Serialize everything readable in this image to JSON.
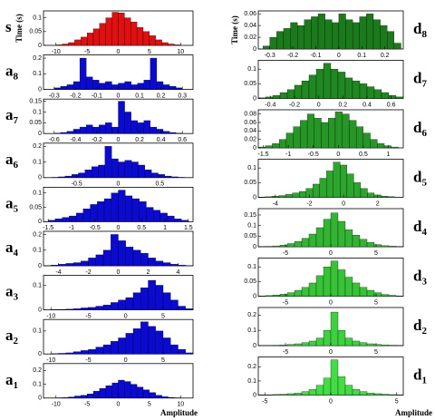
{
  "chart_data": [
    {
      "type": "histogram",
      "label": "s",
      "ylabel": "Time (s)",
      "color": "#e01010",
      "xlim": [
        -12,
        12
      ],
      "xticks": [
        -10,
        -5,
        0,
        5,
        10
      ],
      "ylim": [
        0,
        0.125
      ],
      "yticks": [
        0,
        0.05,
        0.1
      ],
      "bins": [
        -10,
        -9,
        -8,
        -7,
        -6,
        -5,
        -4,
        -3,
        -2,
        -1,
        0,
        1,
        2,
        3,
        4,
        5,
        6,
        7,
        8,
        9,
        10
      ],
      "values": [
        0.002,
        0.005,
        0.01,
        0.02,
        0.03,
        0.045,
        0.06,
        0.08,
        0.1,
        0.12,
        0.118,
        0.1,
        0.085,
        0.065,
        0.05,
        0.035,
        0.02,
        0.01,
        0.005,
        0.002
      ]
    },
    {
      "type": "histogram",
      "label": "a",
      "subscript": "8",
      "color": "#0a0ad0",
      "xlim": [
        -0.35,
        0.35
      ],
      "xticks": [
        -0.3,
        -0.2,
        -0.1,
        0,
        0.1,
        0.2,
        0.3
      ],
      "ylim": [
        0,
        0.22
      ],
      "yticks": [
        0,
        0.1,
        0.2
      ],
      "bins": [
        -0.3,
        -0.27,
        -0.24,
        -0.21,
        -0.18,
        -0.15,
        -0.12,
        -0.09,
        -0.06,
        -0.03,
        0,
        0.03,
        0.06,
        0.09,
        0.12,
        0.15,
        0.18,
        0.21,
        0.24,
        0.27,
        0.3
      ],
      "values": [
        0.01,
        0.02,
        0.03,
        0.05,
        0.2,
        0.08,
        0.06,
        0.04,
        0.05,
        0.03,
        0.04,
        0.05,
        0.03,
        0.04,
        0.06,
        0.2,
        0.05,
        0.03,
        0.02,
        0.01
      ]
    },
    {
      "type": "histogram",
      "label": "a",
      "subscript": "7",
      "color": "#0a0ad0",
      "xlim": [
        -0.7,
        0.7
      ],
      "xticks": [
        -0.6,
        -0.4,
        -0.2,
        0,
        0.2,
        0.4,
        0.6
      ],
      "ylim": [
        0,
        0.16
      ],
      "yticks": [
        0,
        0.05,
        0.1,
        0.15
      ],
      "bins": [
        -0.6,
        -0.54,
        -0.48,
        -0.42,
        -0.36,
        -0.3,
        -0.24,
        -0.18,
        -0.12,
        -0.06,
        0,
        0.06,
        0.12,
        0.18,
        0.24,
        0.3,
        0.36,
        0.42,
        0.48,
        0.54,
        0.6
      ],
      "values": [
        0.002,
        0.005,
        0.01,
        0.02,
        0.03,
        0.04,
        0.03,
        0.04,
        0.05,
        0.03,
        0.15,
        0.1,
        0.06,
        0.05,
        0.06,
        0.03,
        0.02,
        0.01,
        0.005,
        0.002
      ]
    },
    {
      "type": "histogram",
      "label": "a",
      "subscript": "6",
      "color": "#0a0ad0",
      "xlim": [
        -0.9,
        0.9
      ],
      "xticks": [
        -0.5,
        0,
        0.5
      ],
      "ylim": [
        0,
        0.22
      ],
      "yticks": [
        0,
        0.1,
        0.2
      ],
      "bins": [
        -0.8,
        -0.72,
        -0.64,
        -0.56,
        -0.48,
        -0.4,
        -0.32,
        -0.24,
        -0.16,
        -0.08,
        0,
        0.08,
        0.16,
        0.24,
        0.32,
        0.4,
        0.48,
        0.56,
        0.64,
        0.72,
        0.8
      ],
      "values": [
        0.002,
        0.005,
        0.01,
        0.02,
        0.03,
        0.05,
        0.07,
        0.08,
        0.2,
        0.12,
        0.1,
        0.11,
        0.1,
        0.08,
        0.05,
        0.03,
        0.02,
        0.01,
        0.005,
        0.002
      ]
    },
    {
      "type": "histogram",
      "label": "a",
      "subscript": "5",
      "color": "#0a0ad0",
      "xlim": [
        -1.6,
        1.6
      ],
      "xticks": [
        -1.5,
        -1,
        -0.5,
        0,
        0.5,
        1,
        1.5
      ],
      "ylim": [
        0,
        0.12
      ],
      "yticks": [
        0,
        0.05,
        0.1
      ],
      "bins": [
        -1.5,
        -1.35,
        -1.2,
        -1.05,
        -0.9,
        -0.75,
        -0.6,
        -0.45,
        -0.3,
        -0.15,
        0,
        0.15,
        0.3,
        0.45,
        0.6,
        0.75,
        0.9,
        1.05,
        1.2,
        1.35,
        1.5
      ],
      "values": [
        0.005,
        0.01,
        0.015,
        0.02,
        0.03,
        0.045,
        0.06,
        0.07,
        0.08,
        0.1,
        0.11,
        0.09,
        0.08,
        0.07,
        0.05,
        0.04,
        0.03,
        0.02,
        0.01,
        0.005
      ]
    },
    {
      "type": "histogram",
      "label": "a",
      "subscript": "4",
      "color": "#0a0ad0",
      "xlim": [
        -5,
        5
      ],
      "xticks": [
        -4,
        -2,
        0,
        2,
        4
      ],
      "ylim": [
        0,
        0.22
      ],
      "yticks": [
        0,
        0.1,
        0.2
      ],
      "bins": [
        -5,
        -4.5,
        -4,
        -3.5,
        -3,
        -2.5,
        -2,
        -1.5,
        -1,
        -0.5,
        0,
        0.5,
        1,
        1.5,
        2,
        2.5,
        3,
        3.5,
        4,
        4.5,
        5
      ],
      "values": [
        0.002,
        0.005,
        0.01,
        0.015,
        0.02,
        0.03,
        0.05,
        0.07,
        0.1,
        0.2,
        0.16,
        0.12,
        0.1,
        0.08,
        0.05,
        0.03,
        0.02,
        0.01,
        0.005,
        0.002
      ]
    },
    {
      "type": "histogram",
      "label": "a",
      "subscript": "3",
      "color": "#0a0ad0",
      "xlim": [
        -11,
        9
      ],
      "xticks": [
        -10,
        -5,
        0,
        5
      ],
      "ylim": [
        0,
        0.14
      ],
      "yticks": [
        0,
        0.1
      ],
      "bins": [
        -10,
        -9,
        -8,
        -7,
        -6,
        -5,
        -4,
        -3,
        -2,
        -1,
        0,
        1,
        2,
        3,
        4,
        5,
        6,
        7,
        8,
        9
      ],
      "values": [
        0.001,
        0.002,
        0.003,
        0.005,
        0.008,
        0.01,
        0.015,
        0.02,
        0.03,
        0.04,
        0.05,
        0.07,
        0.09,
        0.12,
        0.1,
        0.07,
        0.04,
        0.015,
        0.005
      ]
    },
    {
      "type": "histogram",
      "label": "a",
      "subscript": "2",
      "color": "#0a0ad0",
      "xlim": [
        -11,
        9
      ],
      "xticks": [
        -10,
        -5,
        0,
        5
      ],
      "ylim": [
        0,
        0.15
      ],
      "yticks": [
        0,
        0.1
      ],
      "bins": [
        -10,
        -9,
        -8,
        -7,
        -6,
        -5,
        -4,
        -3,
        -2,
        -1,
        0,
        1,
        2,
        3,
        4,
        5,
        6,
        7,
        8,
        9
      ],
      "values": [
        0.002,
        0.003,
        0.005,
        0.01,
        0.015,
        0.02,
        0.03,
        0.04,
        0.055,
        0.07,
        0.09,
        0.11,
        0.14,
        0.12,
        0.1,
        0.07,
        0.04,
        0.02,
        0.005
      ]
    },
    {
      "type": "histogram",
      "label": "a",
      "subscript": "1",
      "xlabel": "Amplitude",
      "color": "#0a0ad0",
      "xlim": [
        -12,
        12
      ],
      "xticks": [
        -10,
        -5,
        0,
        5,
        10
      ],
      "ylim": [
        0,
        0.25
      ],
      "yticks": [
        0,
        0.1,
        0.2
      ],
      "bins": [
        -10,
        -9,
        -8,
        -7,
        -6,
        -5,
        -4,
        -3,
        -2,
        -1,
        0,
        1,
        2,
        3,
        4,
        5,
        6,
        7,
        8,
        9,
        10
      ],
      "values": [
        0.002,
        0.004,
        0.008,
        0.015,
        0.02,
        0.03,
        0.05,
        0.07,
        0.09,
        0.11,
        0.13,
        0.12,
        0.1,
        0.08,
        0.06,
        0.04,
        0.02,
        0.01,
        0.005,
        0.002
      ]
    },
    {
      "type": "histogram",
      "label": "d",
      "subscript": "8",
      "ylabel": "Time (s)",
      "color": "#1b7a1b",
      "xlim": [
        -0.35,
        0.28
      ],
      "xticks": [
        -0.3,
        -0.2,
        -0.1,
        0,
        0.1,
        0.2
      ],
      "ylim": [
        0,
        0.065
      ],
      "yticks": [
        0,
        0.02,
        0.04,
        0.06
      ],
      "bins": [
        -0.33,
        -0.3,
        -0.27,
        -0.24,
        -0.21,
        -0.18,
        -0.15,
        -0.12,
        -0.09,
        -0.06,
        -0.03,
        0,
        0.03,
        0.06,
        0.09,
        0.12,
        0.15,
        0.18,
        0.21,
        0.24,
        0.27
      ],
      "values": [
        0.005,
        0.02,
        0.03,
        0.035,
        0.045,
        0.04,
        0.05,
        0.055,
        0.06,
        0.05,
        0.045,
        0.06,
        0.05,
        0.045,
        0.055,
        0.06,
        0.05,
        0.04,
        0.03,
        0.01
      ]
    },
    {
      "type": "histogram",
      "label": "d",
      "subscript": "7",
      "color": "#208820",
      "xlim": [
        -0.5,
        0.7
      ],
      "xticks": [
        -0.4,
        -0.2,
        0,
        0.2,
        0.4,
        0.6
      ],
      "ylim": [
        0,
        0.13
      ],
      "yticks": [
        0,
        0.05,
        0.1
      ],
      "bins": [
        -0.5,
        -0.44,
        -0.38,
        -0.32,
        -0.26,
        -0.2,
        -0.14,
        -0.08,
        -0.02,
        0.04,
        0.1,
        0.16,
        0.22,
        0.28,
        0.34,
        0.4,
        0.46,
        0.52,
        0.58,
        0.64,
        0.7
      ],
      "values": [
        0.002,
        0.005,
        0.01,
        0.02,
        0.03,
        0.045,
        0.06,
        0.08,
        0.1,
        0.12,
        0.1,
        0.09,
        0.07,
        0.06,
        0.05,
        0.04,
        0.03,
        0.02,
        0.01,
        0.005
      ]
    },
    {
      "type": "histogram",
      "label": "d",
      "subscript": "6",
      "color": "#269626",
      "xlim": [
        -1.6,
        1.3
      ],
      "xticks": [
        -1.5,
        -1,
        -0.5,
        0,
        0.5,
        1
      ],
      "ylim": [
        0,
        0.09
      ],
      "yticks": [
        0,
        0.02,
        0.04,
        0.06,
        0.08
      ],
      "bins": [
        -1.6,
        -1.46,
        -1.32,
        -1.18,
        -1.04,
        -0.9,
        -0.76,
        -0.62,
        -0.48,
        -0.34,
        -0.2,
        -0.06,
        0.08,
        0.22,
        0.36,
        0.5,
        0.64,
        0.78,
        0.92,
        1.06,
        1.2
      ],
      "values": [
        0.002,
        0.005,
        0.01,
        0.02,
        0.035,
        0.05,
        0.065,
        0.08,
        0.07,
        0.06,
        0.07,
        0.085,
        0.08,
        0.065,
        0.05,
        0.035,
        0.02,
        0.01,
        0.005,
        0.002
      ]
    },
    {
      "type": "histogram",
      "label": "d",
      "subscript": "5",
      "color": "#2da62d",
      "xlim": [
        -5,
        3.5
      ],
      "xticks": [
        -4,
        -2,
        0,
        2
      ],
      "ylim": [
        0,
        0.13
      ],
      "yticks": [
        0,
        0.05,
        0.1
      ],
      "bins": [
        -5,
        -4.6,
        -4.2,
        -3.8,
        -3.4,
        -3,
        -2.6,
        -2.2,
        -1.8,
        -1.4,
        -1,
        -0.6,
        -0.2,
        0.2,
        0.6,
        1,
        1.4,
        1.8,
        2.2,
        2.6,
        3
      ],
      "values": [
        0.001,
        0.002,
        0.004,
        0.006,
        0.01,
        0.015,
        0.02,
        0.03,
        0.045,
        0.065,
        0.09,
        0.12,
        0.11,
        0.08,
        0.05,
        0.03,
        0.015,
        0.008,
        0.004,
        0.002
      ]
    },
    {
      "type": "histogram",
      "label": "d",
      "subscript": "4",
      "color": "#33b433",
      "xlim": [
        -8,
        8
      ],
      "xticks": [
        -5,
        0,
        5
      ],
      "ylim": [
        0,
        0.18
      ],
      "yticks": [
        0,
        0.05,
        0.1,
        0.15
      ],
      "bins": [
        -8,
        -7.2,
        -6.4,
        -5.6,
        -4.8,
        -4,
        -3.2,
        -2.4,
        -1.6,
        -0.8,
        0,
        0.8,
        1.6,
        2.4,
        3.2,
        4,
        4.8,
        5.6,
        6.4,
        7.2,
        8
      ],
      "values": [
        0.001,
        0.002,
        0.004,
        0.008,
        0.015,
        0.025,
        0.04,
        0.06,
        0.09,
        0.13,
        0.16,
        0.12,
        0.08,
        0.055,
        0.035,
        0.02,
        0.01,
        0.005,
        0.003,
        0.001
      ]
    },
    {
      "type": "histogram",
      "label": "d",
      "subscript": "3",
      "color": "#38c238",
      "xlim": [
        -8,
        8
      ],
      "xticks": [
        -5,
        0,
        5
      ],
      "ylim": [
        0,
        0.13
      ],
      "yticks": [
        0,
        0.05,
        0.1
      ],
      "bins": [
        -8,
        -7.2,
        -6.4,
        -5.6,
        -4.8,
        -4,
        -3.2,
        -2.4,
        -1.6,
        -0.8,
        0,
        0.8,
        1.6,
        2.4,
        3.2,
        4,
        4.8,
        5.6,
        6.4,
        7.2,
        8
      ],
      "values": [
        0.001,
        0.002,
        0.004,
        0.007,
        0.012,
        0.02,
        0.03,
        0.045,
        0.07,
        0.1,
        0.12,
        0.09,
        0.065,
        0.045,
        0.03,
        0.02,
        0.012,
        0.006,
        0.003,
        0.001
      ]
    },
    {
      "type": "histogram",
      "label": "d",
      "subscript": "2",
      "color": "#3ed03e",
      "xlim": [
        -8,
        8
      ],
      "xticks": [
        -5,
        0,
        5
      ],
      "ylim": [
        0,
        0.25
      ],
      "yticks": [
        0,
        0.1,
        0.2
      ],
      "bins": [
        -8,
        -7.2,
        -6.4,
        -5.6,
        -4.8,
        -4,
        -3.2,
        -2.4,
        -1.6,
        -0.8,
        0,
        0.8,
        1.6,
        2.4,
        3.2,
        4,
        4.8,
        5.6,
        6.4,
        7.2,
        8
      ],
      "values": [
        0.001,
        0.002,
        0.003,
        0.005,
        0.008,
        0.012,
        0.02,
        0.03,
        0.05,
        0.1,
        0.22,
        0.1,
        0.05,
        0.03,
        0.02,
        0.012,
        0.008,
        0.005,
        0.003,
        0.001
      ]
    },
    {
      "type": "histogram",
      "label": "d",
      "subscript": "1",
      "xlabel": "Amplitude",
      "color": "#44dc44",
      "xlim": [
        -5.5,
        5.5
      ],
      "xticks": [
        -5,
        0,
        5
      ],
      "ylim": [
        0,
        0.27
      ],
      "yticks": [
        0,
        0.1,
        0.2
      ],
      "bins": [
        -5.5,
        -4.95,
        -4.4,
        -3.85,
        -3.3,
        -2.75,
        -2.2,
        -1.65,
        -1.1,
        -0.55,
        0,
        0.55,
        1.1,
        1.65,
        2.2,
        2.75,
        3.3,
        3.85,
        4.4,
        4.95,
        5.5
      ],
      "values": [
        0.001,
        0.002,
        0.004,
        0.006,
        0.01,
        0.015,
        0.025,
        0.04,
        0.07,
        0.12,
        0.25,
        0.13,
        0.07,
        0.04,
        0.025,
        0.015,
        0.01,
        0.006,
        0.003,
        0.001
      ]
    }
  ]
}
